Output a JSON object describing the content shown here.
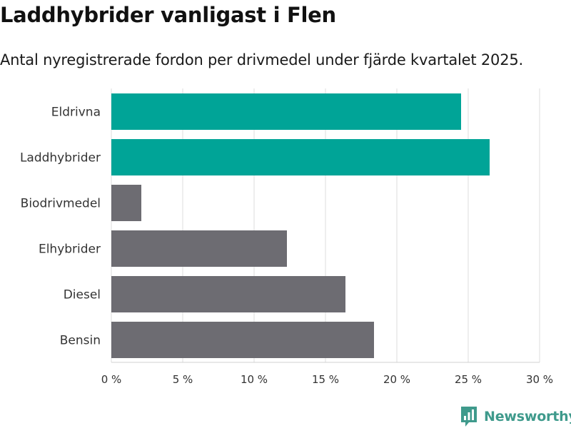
{
  "title": "Laddhybrider vanligast i Flen",
  "subtitle": "Antal nyregistrerade fordon per drivmedel under fjärde kvartalet 2025.",
  "brand": {
    "name": "Newsworthy",
    "icon": "newsworthy-logo-icon",
    "color": "#3f9a8c"
  },
  "chart_data": {
    "type": "bar",
    "orientation": "horizontal",
    "title": "Laddhybrider vanligast i Flen",
    "subtitle": "Antal nyregistrerade fordon per drivmedel under fjärde kvartalet 2025.",
    "xlabel": "",
    "ylabel": "",
    "xlim": [
      0,
      30
    ],
    "xticks": [
      0,
      5,
      10,
      15,
      20,
      25,
      30
    ],
    "xtick_labels": [
      "0 %",
      "5 %",
      "10 %",
      "15 %",
      "20 %",
      "25 %",
      "30 %"
    ],
    "grid": true,
    "categories": [
      "Eldrivna",
      "Laddhybrider",
      "Biodrivmedel",
      "Elhybrider",
      "Diesel",
      "Bensin"
    ],
    "values": [
      24.5,
      26.5,
      2.1,
      12.3,
      16.4,
      18.4
    ],
    "colors": [
      "#00a497",
      "#00a497",
      "#6d6c72",
      "#6d6c72",
      "#6d6c72",
      "#6d6c72"
    ],
    "unit": "%"
  }
}
